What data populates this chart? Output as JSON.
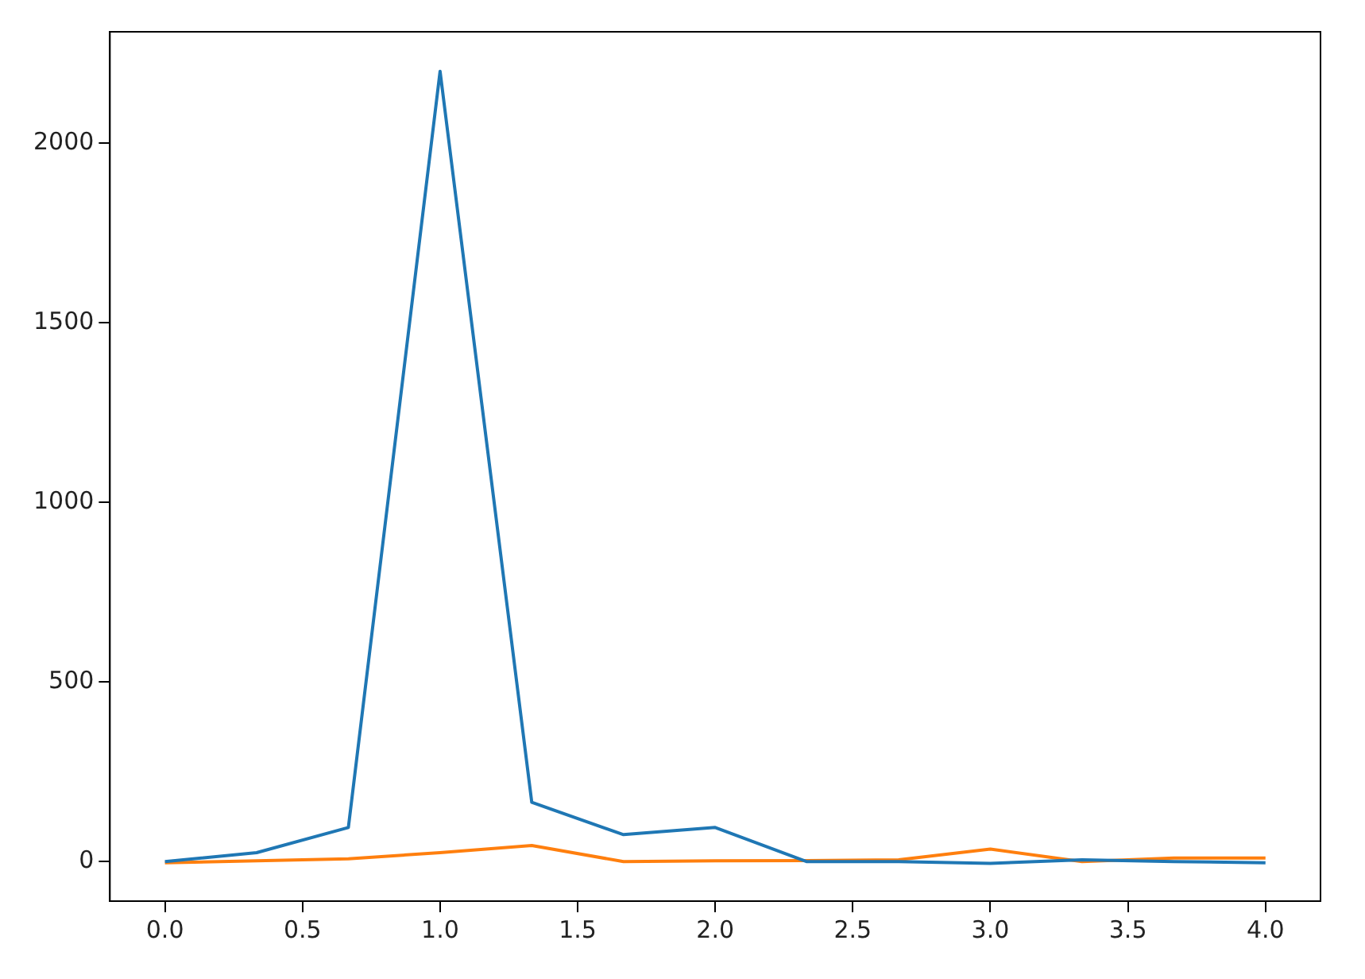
{
  "chart_data": {
    "type": "line",
    "x": [
      0,
      0.3333,
      0.6667,
      1,
      1.3333,
      1.6667,
      2,
      2.3333,
      2.6667,
      3,
      3.3333,
      3.6667,
      4
    ],
    "series": [
      {
        "color": "#1f77b4",
        "values": [
          0,
          25,
          95,
          2200,
          165,
          75,
          95,
          0,
          0,
          -5,
          5,
          0,
          -3
        ]
      },
      {
        "color": "#ff7f0e",
        "values": [
          -3,
          2,
          8,
          25,
          45,
          0,
          2,
          3,
          5,
          35,
          0,
          10,
          10
        ]
      }
    ],
    "xlim": [
      -0.2,
      4.2
    ],
    "xticks": [
      {
        "value": 0,
        "label": "0.0"
      },
      {
        "value": 0.5,
        "label": "0.5"
      },
      {
        "value": 1,
        "label": "1.0"
      },
      {
        "value": 1.5,
        "label": "1.5"
      },
      {
        "value": 2,
        "label": "2.0"
      },
      {
        "value": 2.5,
        "label": "2.5"
      },
      {
        "value": 3,
        "label": "3.0"
      },
      {
        "value": 3.5,
        "label": "3.5"
      },
      {
        "value": 4,
        "label": "4.0"
      }
    ],
    "ylim": [
      -110,
      2310
    ],
    "yticks": [
      0,
      500,
      1000,
      1500,
      2000
    ],
    "grid": false,
    "legend": false,
    "marker": "none",
    "line_style": "solid"
  }
}
